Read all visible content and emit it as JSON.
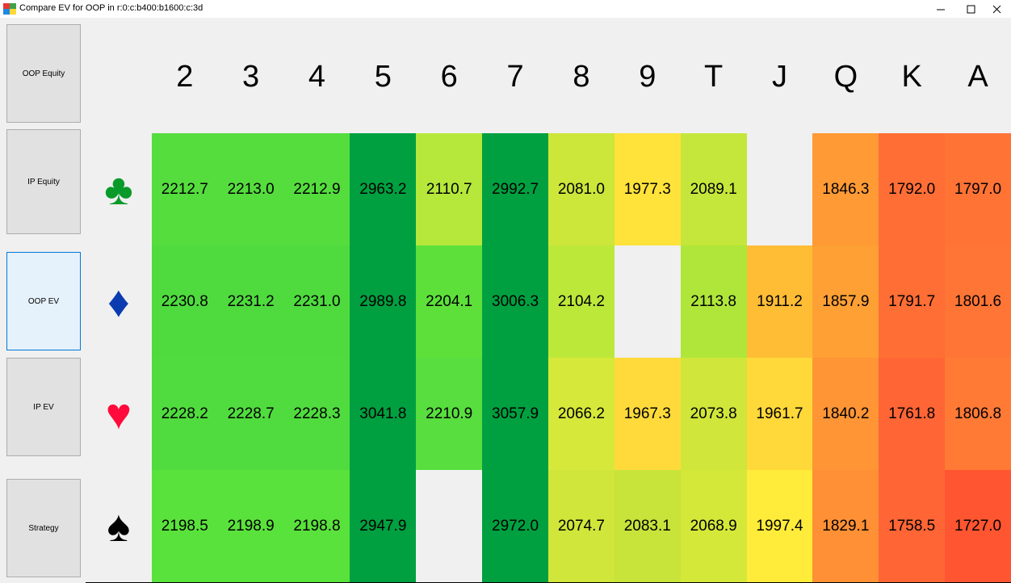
{
  "window": {
    "title": "Compare EV for OOP in r:0:c:b400:b1600:c:3d"
  },
  "sidebar": {
    "buttons": [
      "OOP Equity",
      "IP Equity",
      "OOP EV",
      "IP EV",
      "Strategy"
    ],
    "selected": 2
  },
  "table": {
    "columns": [
      "2",
      "3",
      "4",
      "5",
      "6",
      "7",
      "8",
      "9",
      "T",
      "J",
      "Q",
      "K",
      "A"
    ],
    "rows": [
      {
        "suit": "♣",
        "suit_color": "#0a9a2a",
        "cells": [
          "2212.7",
          "2213.0",
          "2212.9",
          "2963.2",
          "2110.7",
          "2992.7",
          "2081.0",
          "1977.3",
          "2089.1",
          null,
          "1846.3",
          "1792.0",
          "1797.0"
        ],
        "colors": [
          "#55dd3e",
          "#55dd3e",
          "#55dd3e",
          "#00a040",
          "#b5e83a",
          "#00a040",
          "#cce63a",
          "#ffe23a",
          "#c5e63a",
          null,
          "#ff9a35",
          "#ff6e35",
          "#ff7335"
        ]
      },
      {
        "suit": "♦",
        "suit_color": "#0b3bb0",
        "cells": [
          "2230.8",
          "2231.2",
          "2231.0",
          "2989.8",
          "2204.1",
          "3006.3",
          "2104.2",
          null,
          "2113.8",
          "1911.2",
          "1857.9",
          "1791.7",
          "1801.6"
        ],
        "colors": [
          "#4fdb3e",
          "#4fdb3e",
          "#4fdb3e",
          "#00a040",
          "#5ee03a",
          "#00a040",
          "#bce83a",
          null,
          "#b0e63a",
          "#ffbc35",
          "#ffa035",
          "#ff6e35",
          "#ff7535"
        ]
      },
      {
        "suit": "♥",
        "suit_color": "#ff0a3a",
        "cells": [
          "2228.2",
          "2228.7",
          "2228.3",
          "3041.8",
          "2210.9",
          "3057.9",
          "2066.2",
          "1967.3",
          "2073.8",
          "1961.7",
          "1840.2",
          "1761.8",
          "1806.8"
        ],
        "colors": [
          "#50dc3e",
          "#50dc3e",
          "#50dc3e",
          "#00a040",
          "#58de3e",
          "#00a040",
          "#d6e83a",
          "#ffda3a",
          "#d0e63a",
          "#ffd83a",
          "#ff9535",
          "#ff6535",
          "#ff7a35"
        ]
      },
      {
        "suit": "♠",
        "suit_color": "#000000",
        "cells": [
          "2198.5",
          "2198.9",
          "2198.8",
          "2947.9",
          null,
          "2972.0",
          "2074.7",
          "2083.1",
          "2068.9",
          "1997.4",
          "1829.1",
          "1758.5",
          "1727.0"
        ],
        "colors": [
          "#5ae23c",
          "#5ae23c",
          "#5ae23c",
          "#00a040",
          null,
          "#00a040",
          "#d0e63a",
          "#c8e33a",
          "#d4e83a",
          "#ffec3a",
          "#ff9035",
          "#ff6535",
          "#ff5530"
        ]
      }
    ]
  }
}
